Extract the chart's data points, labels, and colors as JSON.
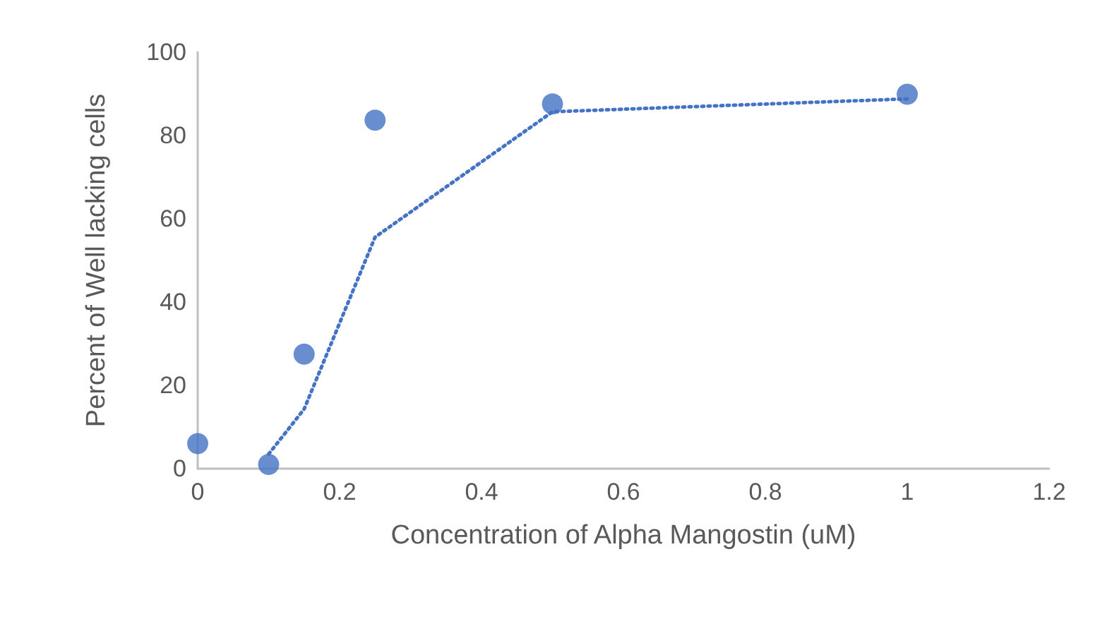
{
  "chart_data": {
    "type": "scatter",
    "xlabel": "Concentration of Alpha Mangostin (uM)",
    "ylabel": "Percent of Well lacking cells",
    "x": [
      0,
      0.1,
      0.15,
      0.25,
      0.5,
      1
    ],
    "series": [
      {
        "color": "#4472c4",
        "values": [
          6,
          1,
          27.5,
          83.7,
          87.6,
          89.9
        ],
        "marker": "circle"
      },
      {
        "type": "line",
        "color": "#4472c4",
        "x": [
          0.1,
          0.15,
          0.25,
          0.5,
          1
        ],
        "values": [
          3.5,
          14.3,
          55.6,
          85.7,
          88.8
        ],
        "line_style": "dotted",
        "marker": "none"
      }
    ],
    "xlim": [
      0,
      1.2
    ],
    "xticks": [
      0,
      0.2,
      0.4,
      0.6,
      0.8,
      1,
      1.2
    ],
    "ylim": [
      0,
      100
    ],
    "yticks": [
      0,
      20,
      40,
      60,
      80,
      100
    ],
    "grid": false
  }
}
